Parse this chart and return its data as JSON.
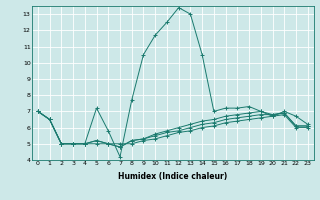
{
  "xlabel": "Humidex (Indice chaleur)",
  "xlim": [
    -0.5,
    23.5
  ],
  "ylim": [
    4,
    13.5
  ],
  "yticks": [
    4,
    5,
    6,
    7,
    8,
    9,
    10,
    11,
    12,
    13
  ],
  "xticks": [
    0,
    1,
    2,
    3,
    4,
    5,
    6,
    7,
    8,
    9,
    10,
    11,
    12,
    13,
    14,
    15,
    16,
    17,
    18,
    19,
    20,
    21,
    22,
    23
  ],
  "bg_color": "#cde8e8",
  "line_color": "#1a7a6e",
  "grid_color": "#ffffff",
  "series": [
    [
      7.0,
      6.5,
      5.0,
      5.0,
      5.0,
      7.2,
      5.8,
      4.2,
      7.7,
      10.5,
      11.7,
      12.5,
      13.4,
      13.0,
      10.5,
      7.0,
      7.2,
      7.2,
      7.3,
      7.0,
      6.7,
      7.0,
      6.7,
      6.2
    ],
    [
      7.0,
      6.5,
      5.0,
      5.0,
      5.0,
      5.2,
      5.0,
      4.8,
      5.2,
      5.3,
      5.5,
      5.7,
      5.8,
      6.0,
      6.2,
      6.3,
      6.5,
      6.6,
      6.7,
      6.8,
      6.8,
      6.9,
      6.1,
      6.1
    ],
    [
      7.0,
      6.5,
      5.0,
      5.0,
      5.0,
      5.2,
      5.0,
      4.8,
      5.2,
      5.3,
      5.6,
      5.8,
      6.0,
      6.2,
      6.4,
      6.5,
      6.7,
      6.8,
      6.9,
      7.0,
      6.8,
      6.9,
      6.1,
      6.1
    ],
    [
      7.0,
      6.5,
      5.0,
      5.0,
      5.0,
      5.0,
      5.0,
      5.0,
      5.0,
      5.2,
      5.3,
      5.5,
      5.7,
      5.8,
      6.0,
      6.1,
      6.3,
      6.4,
      6.5,
      6.6,
      6.7,
      6.8,
      6.0,
      6.0
    ]
  ],
  "xlabel_fontsize": 5.5,
  "tick_fontsize": 4.5,
  "xlabel_fontweight": "bold"
}
